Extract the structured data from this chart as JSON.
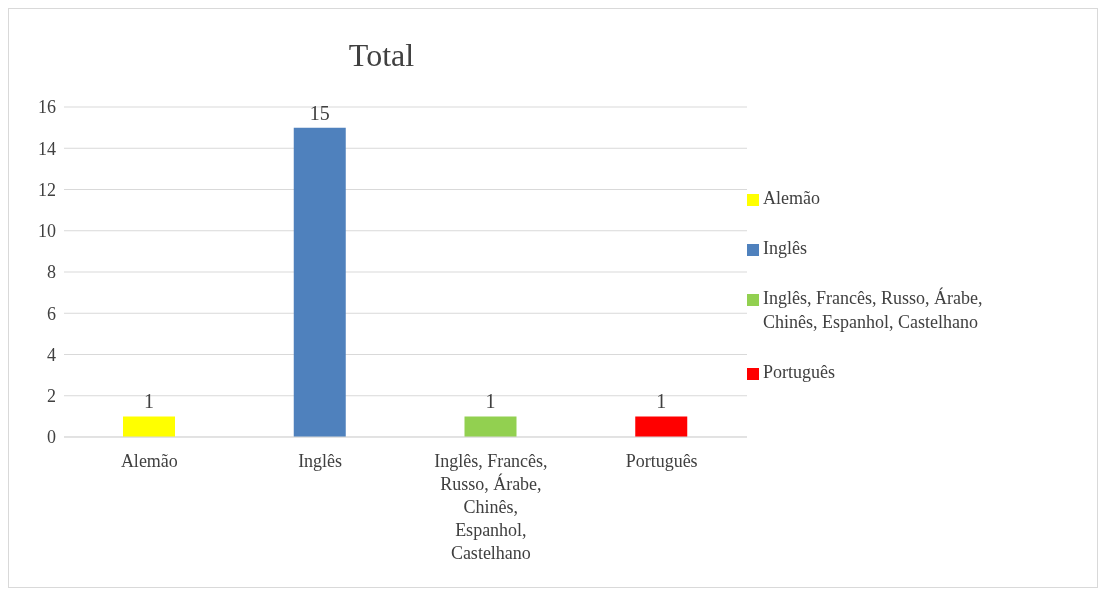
{
  "chart_data": {
    "type": "bar",
    "title": "Total",
    "categories": [
      "Alemão",
      "Inglês",
      "Inglês, Francês, Russo, Árabe, Chinês, Espanhol, Castelhano",
      "Português"
    ],
    "series": [
      {
        "name": "Alemão",
        "color": "#ffff00",
        "values": [
          1,
          null,
          null,
          null
        ]
      },
      {
        "name": "Inglês",
        "color": "#4f81bd",
        "values": [
          null,
          15,
          null,
          null
        ]
      },
      {
        "name": "Inglês, Francês, Russo, Árabe, Chinês, Espanhol, Castelhano",
        "color": "#92d050",
        "values": [
          null,
          null,
          1,
          null
        ]
      },
      {
        "name": "Português",
        "color": "#ff0000",
        "values": [
          null,
          null,
          null,
          1
        ]
      }
    ],
    "stacked": true,
    "ylim": [
      0,
      16
    ],
    "yticks": [
      0,
      2,
      4,
      6,
      8,
      10,
      12,
      14,
      16
    ],
    "grid": "y",
    "legend": "right",
    "data_labels": true
  }
}
